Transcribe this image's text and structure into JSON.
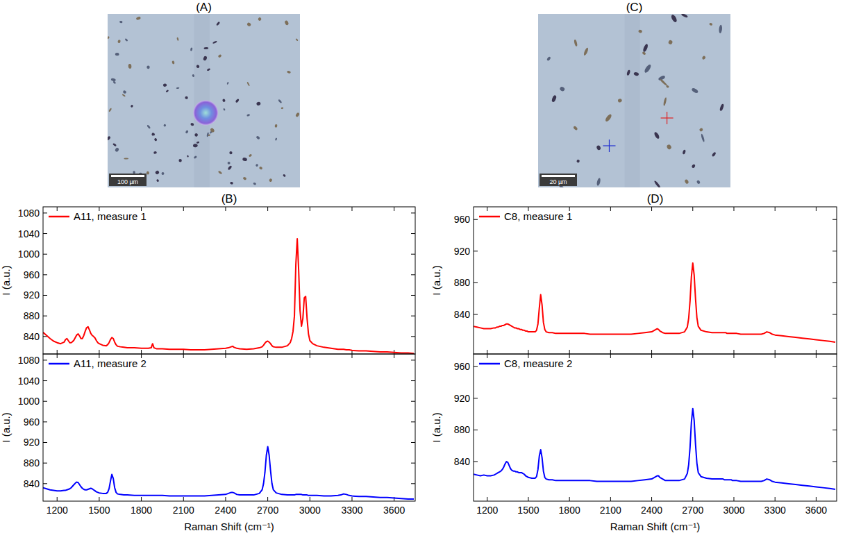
{
  "panels": [
    {
      "label": "(A)",
      "scale_bar": "100 µm"
    },
    {
      "label": "(B)"
    },
    {
      "label": "(C)",
      "scale_bar": "20 µm"
    },
    {
      "label": "(D)"
    }
  ],
  "chart_data": [
    {
      "type": "line",
      "y_label": "I (a.u.)",
      "tick_labels": "y",
      "legend": "upper left",
      "xlim": [
        1100,
        3750
      ],
      "ylim": [
        806,
        1092
      ],
      "xticks": [
        1200,
        1500,
        1800,
        2100,
        2400,
        2700,
        3000,
        3300,
        3600
      ],
      "yticks": [
        840,
        880,
        920,
        960,
        1000,
        1040,
        1080
      ],
      "x": [
        1100,
        1125,
        1150,
        1175,
        1200,
        1225,
        1250,
        1260,
        1270,
        1280,
        1290,
        1300,
        1310,
        1320,
        1330,
        1340,
        1350,
        1360,
        1370,
        1380,
        1390,
        1400,
        1410,
        1420,
        1430,
        1440,
        1450,
        1460,
        1470,
        1480,
        1490,
        1500,
        1525,
        1550,
        1560,
        1570,
        1580,
        1590,
        1600,
        1610,
        1620,
        1630,
        1650,
        1675,
        1700,
        1750,
        1800,
        1850,
        1870,
        1880,
        1890,
        1910,
        1950,
        2000,
        2050,
        2100,
        2150,
        2200,
        2250,
        2300,
        2350,
        2400,
        2420,
        2440,
        2450,
        2460,
        2480,
        2500,
        2550,
        2600,
        2640,
        2660,
        2670,
        2680,
        2690,
        2700,
        2710,
        2720,
        2730,
        2740,
        2760,
        2800,
        2840,
        2860,
        2870,
        2880,
        2890,
        2900,
        2910,
        2920,
        2930,
        2940,
        2950,
        2960,
        2970,
        2980,
        2990,
        3000,
        3020,
        3050,
        3100,
        3150,
        3200,
        3220,
        3240,
        3260,
        3280,
        3300,
        3350,
        3400,
        3450,
        3500,
        3550,
        3600,
        3650,
        3700,
        3740
      ],
      "series": [
        {
          "name": "A11, measure 1",
          "color": "#ff0000",
          "values": [
            848,
            842,
            836,
            831,
            828,
            826,
            829,
            834,
            836,
            832,
            828,
            828,
            830,
            833,
            838,
            843,
            845,
            841,
            836,
            836,
            842,
            850,
            857,
            859,
            853,
            846,
            842,
            840,
            837,
            832,
            828,
            826,
            823,
            822,
            824,
            828,
            834,
            838,
            836,
            829,
            824,
            821,
            820,
            819,
            818,
            818,
            817,
            817,
            818,
            826,
            818,
            816,
            816,
            815,
            815,
            815,
            814,
            814,
            814,
            815,
            816,
            817,
            818,
            820,
            821,
            819,
            817,
            816,
            815,
            816,
            818,
            820,
            823,
            827,
            830,
            831,
            829,
            826,
            822,
            820,
            819,
            819,
            822,
            828,
            836,
            850,
            880,
            980,
            1030,
            970,
            890,
            860,
            875,
            915,
            918,
            875,
            845,
            832,
            826,
            822,
            819,
            817,
            815,
            815,
            815,
            814,
            814,
            813,
            812,
            812,
            811,
            810,
            810,
            809,
            808,
            808,
            807
          ]
        }
      ]
    },
    {
      "type": "line",
      "y_label": "I (a.u.)",
      "x_label": "Raman Shift (cm⁻¹)",
      "tick_labels": true,
      "legend": "upper left",
      "xlim": [
        1100,
        3750
      ],
      "ylim": [
        806,
        1092
      ],
      "xticks": [
        1200,
        1500,
        1800,
        2100,
        2400,
        2700,
        3000,
        3300,
        3600
      ],
      "yticks": [
        840,
        880,
        920,
        960,
        1000,
        1040,
        1080
      ],
      "x": [
        1100,
        1125,
        1150,
        1175,
        1200,
        1225,
        1250,
        1260,
        1270,
        1280,
        1290,
        1300,
        1310,
        1320,
        1330,
        1340,
        1350,
        1360,
        1370,
        1380,
        1390,
        1400,
        1410,
        1420,
        1430,
        1440,
        1450,
        1460,
        1470,
        1480,
        1490,
        1500,
        1525,
        1550,
        1560,
        1570,
        1580,
        1590,
        1600,
        1610,
        1620,
        1630,
        1650,
        1675,
        1700,
        1750,
        1800,
        1850,
        1870,
        1880,
        1890,
        1910,
        1950,
        2000,
        2050,
        2100,
        2150,
        2200,
        2250,
        2300,
        2350,
        2400,
        2420,
        2440,
        2450,
        2460,
        2480,
        2500,
        2550,
        2600,
        2640,
        2660,
        2670,
        2680,
        2690,
        2700,
        2710,
        2720,
        2730,
        2740,
        2760,
        2800,
        2840,
        2860,
        2870,
        2880,
        2890,
        2900,
        2910,
        2920,
        2930,
        2940,
        2950,
        2960,
        2970,
        2980,
        2990,
        3000,
        3020,
        3050,
        3100,
        3150,
        3200,
        3220,
        3240,
        3260,
        3280,
        3300,
        3350,
        3400,
        3450,
        3500,
        3550,
        3600,
        3650,
        3700,
        3740
      ],
      "series": [
        {
          "name": "A11, measure 2",
          "color": "#0000ff",
          "values": [
            832,
            830,
            828,
            827,
            826,
            826,
            827,
            827,
            828,
            829,
            830,
            832,
            835,
            838,
            841,
            843,
            842,
            838,
            834,
            831,
            829,
            828,
            828,
            829,
            830,
            831,
            830,
            828,
            826,
            824,
            823,
            822,
            821,
            821,
            823,
            830,
            845,
            858,
            850,
            832,
            823,
            820,
            819,
            818,
            818,
            817,
            817,
            817,
            817,
            817,
            817,
            817,
            817,
            816,
            816,
            816,
            816,
            816,
            816,
            817,
            818,
            819,
            821,
            823,
            823,
            822,
            819,
            818,
            818,
            818,
            821,
            828,
            840,
            862,
            895,
            912,
            895,
            865,
            840,
            828,
            822,
            819,
            818,
            818,
            818,
            818,
            818,
            819,
            819,
            819,
            819,
            819,
            818,
            818,
            818,
            818,
            817,
            817,
            817,
            817,
            816,
            816,
            817,
            818,
            820,
            819,
            817,
            816,
            815,
            815,
            814,
            813,
            813,
            812,
            811,
            810,
            810
          ]
        }
      ]
    },
    {
      "type": "line",
      "y_label": "I (a.u.)",
      "tick_labels": "y",
      "legend": "upper left",
      "xlim": [
        1100,
        3750
      ],
      "ylim": [
        790,
        976
      ],
      "xticks": [
        1200,
        1500,
        1800,
        2100,
        2400,
        2700,
        3000,
        3300,
        3600
      ],
      "yticks": [
        840,
        880,
        920,
        960
      ],
      "x": [
        1100,
        1125,
        1150,
        1175,
        1200,
        1225,
        1250,
        1260,
        1270,
        1280,
        1290,
        1300,
        1310,
        1320,
        1330,
        1340,
        1350,
        1360,
        1370,
        1380,
        1390,
        1400,
        1410,
        1420,
        1430,
        1440,
        1450,
        1460,
        1470,
        1480,
        1490,
        1500,
        1525,
        1550,
        1560,
        1570,
        1580,
        1590,
        1600,
        1610,
        1620,
        1630,
        1650,
        1675,
        1700,
        1750,
        1800,
        1850,
        1870,
        1880,
        1890,
        1910,
        1950,
        2000,
        2050,
        2100,
        2150,
        2200,
        2250,
        2300,
        2350,
        2400,
        2420,
        2440,
        2450,
        2460,
        2480,
        2500,
        2550,
        2600,
        2640,
        2660,
        2670,
        2680,
        2690,
        2700,
        2710,
        2720,
        2730,
        2740,
        2760,
        2800,
        2840,
        2860,
        2870,
        2880,
        2890,
        2900,
        2910,
        2920,
        2930,
        2940,
        2950,
        2960,
        2970,
        2980,
        2990,
        3000,
        3020,
        3050,
        3100,
        3150,
        3200,
        3220,
        3240,
        3260,
        3280,
        3300,
        3350,
        3400,
        3450,
        3500,
        3550,
        3600,
        3650,
        3700,
        3740
      ],
      "series": [
        {
          "name": "C8, measure 1",
          "color": "#ff0000",
          "values": [
            825,
            824,
            823,
            822,
            822,
            822,
            823,
            823,
            824,
            824,
            825,
            825,
            826,
            826,
            827,
            828,
            828,
            827,
            826,
            825,
            824,
            823,
            823,
            822,
            822,
            821,
            821,
            820,
            820,
            819,
            819,
            818,
            818,
            818,
            820,
            828,
            848,
            865,
            852,
            830,
            821,
            818,
            817,
            817,
            816,
            816,
            816,
            816,
            816,
            816,
            816,
            816,
            815,
            815,
            815,
            815,
            815,
            815,
            815,
            816,
            817,
            818,
            820,
            822,
            821,
            819,
            817,
            816,
            816,
            816,
            818,
            824,
            835,
            857,
            888,
            905,
            890,
            860,
            836,
            825,
            820,
            818,
            817,
            817,
            817,
            817,
            817,
            817,
            817,
            817,
            817,
            817,
            816,
            816,
            816,
            816,
            816,
            816,
            816,
            815,
            815,
            815,
            815,
            816,
            818,
            817,
            815,
            814,
            813,
            812,
            811,
            810,
            809,
            808,
            807,
            806,
            805
          ]
        }
      ]
    },
    {
      "type": "line",
      "y_label": "I (a.u.)",
      "x_label": "Raman Shift (cm⁻¹)",
      "tick_labels": true,
      "legend": "upper left",
      "xlim": [
        1100,
        3750
      ],
      "ylim": [
        790,
        976
      ],
      "xticks": [
        1200,
        1500,
        1800,
        2100,
        2400,
        2700,
        3000,
        3300,
        3600
      ],
      "yticks": [
        840,
        880,
        920,
        960
      ],
      "x": [
        1100,
        1125,
        1150,
        1175,
        1200,
        1225,
        1250,
        1260,
        1270,
        1280,
        1290,
        1300,
        1310,
        1320,
        1330,
        1340,
        1350,
        1360,
        1370,
        1380,
        1390,
        1400,
        1410,
        1420,
        1430,
        1440,
        1450,
        1460,
        1470,
        1480,
        1490,
        1500,
        1525,
        1550,
        1560,
        1570,
        1580,
        1590,
        1600,
        1610,
        1620,
        1630,
        1650,
        1675,
        1700,
        1750,
        1800,
        1850,
        1870,
        1880,
        1890,
        1910,
        1950,
        2000,
        2050,
        2100,
        2150,
        2200,
        2250,
        2300,
        2350,
        2400,
        2420,
        2440,
        2450,
        2460,
        2480,
        2500,
        2550,
        2600,
        2640,
        2660,
        2670,
        2680,
        2690,
        2700,
        2710,
        2720,
        2730,
        2740,
        2760,
        2800,
        2840,
        2860,
        2870,
        2880,
        2890,
        2900,
        2910,
        2920,
        2930,
        2940,
        2950,
        2960,
        2970,
        2980,
        2990,
        3000,
        3020,
        3050,
        3100,
        3150,
        3200,
        3220,
        3240,
        3260,
        3280,
        3300,
        3350,
        3400,
        3450,
        3500,
        3550,
        3600,
        3650,
        3700,
        3740
      ],
      "series": [
        {
          "name": "C8, measure 2",
          "color": "#0000ff",
          "values": [
            824,
            823,
            822,
            823,
            822,
            822,
            823,
            824,
            825,
            826,
            827,
            828,
            830,
            833,
            837,
            840,
            839,
            835,
            831,
            829,
            828,
            828,
            827,
            827,
            826,
            826,
            826,
            825,
            824,
            822,
            821,
            820,
            819,
            819,
            821,
            830,
            847,
            855,
            845,
            828,
            820,
            818,
            817,
            817,
            816,
            816,
            816,
            816,
            816,
            816,
            816,
            816,
            816,
            815,
            815,
            815,
            815,
            815,
            815,
            816,
            817,
            818,
            820,
            822,
            822,
            820,
            818,
            816,
            816,
            816,
            818,
            825,
            836,
            858,
            890,
            907,
            892,
            862,
            838,
            826,
            821,
            819,
            818,
            818,
            818,
            818,
            818,
            818,
            818,
            818,
            817,
            817,
            817,
            817,
            817,
            817,
            816,
            816,
            816,
            815,
            815,
            815,
            815,
            816,
            818,
            817,
            815,
            814,
            813,
            812,
            811,
            810,
            809,
            808,
            807,
            806,
            805
          ]
        }
      ]
    }
  ]
}
